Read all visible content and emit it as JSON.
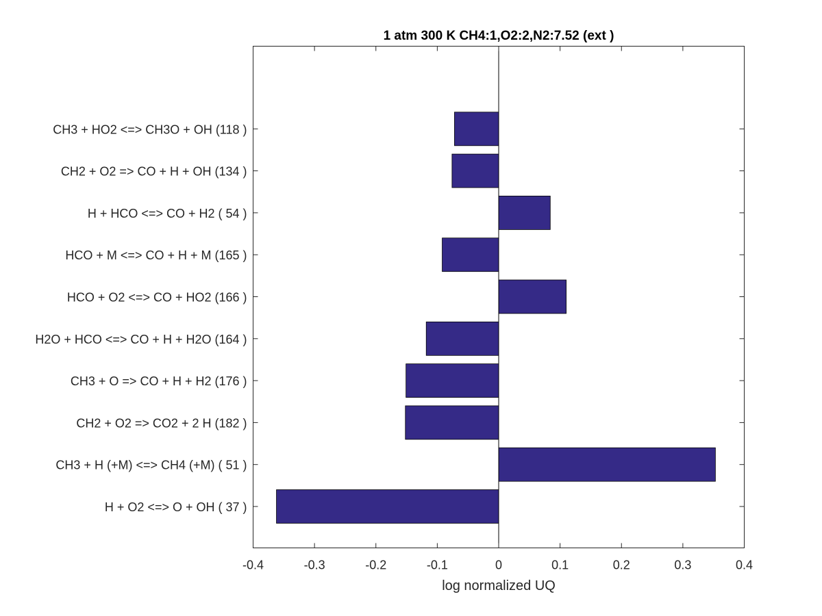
{
  "chart_data": {
    "type": "bar",
    "orientation": "horizontal",
    "title": "1 atm 300 K CH4:1,O2:2,N2:7.52 (ext )",
    "xlabel": "log normalized UQ",
    "ylabel": "",
    "xlim": [
      -0.4,
      0.4
    ],
    "xticks": [
      "-0.4",
      "-0.3",
      "-0.2",
      "-0.1",
      "0",
      "0.1",
      "0.2",
      "0.3",
      "0.4"
    ],
    "categories": [
      "H + O2 <=> O + OH ( 37 )",
      "CH3 + H (+M) <=> CH4 (+M) ( 51 )",
      "CH2 + O2 => CO2 + 2 H (182 )",
      "CH3 + O => CO + H + H2 (176 )",
      "H2O + HCO <=> CO + H + H2O (164 )",
      "HCO + O2 <=> CO + HO2 (166 )",
      "HCO + M <=> CO + H + M (165 )",
      "H + HCO <=> CO + H2 ( 54 )",
      "CH2 + O2 => CO + H + OH (134 )",
      "CH3 + HO2 <=> CH3O + OH (118 )"
    ],
    "values": [
      -0.362,
      0.353,
      -0.152,
      -0.151,
      -0.118,
      0.11,
      -0.092,
      0.084,
      -0.076,
      -0.072
    ],
    "bar_color": "#352a87",
    "grid": false,
    "zero_line": true
  }
}
